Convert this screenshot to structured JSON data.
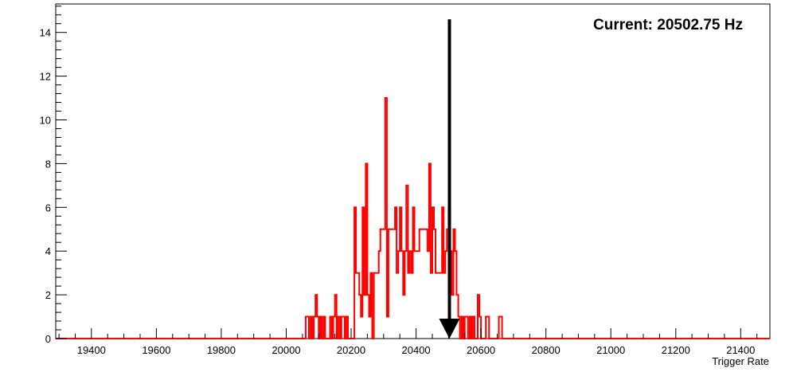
{
  "chart_data": {
    "type": "histogram",
    "title": "",
    "xlabel": "Trigger Rate",
    "ylabel": "",
    "xlim": [
      19290,
      21490
    ],
    "ylim": [
      0,
      15.3
    ],
    "x_ticks": [
      19400,
      19600,
      19800,
      20000,
      20200,
      20400,
      20600,
      20800,
      21000,
      21200,
      21400
    ],
    "y_ticks": [
      0,
      2,
      4,
      6,
      8,
      10,
      12,
      14
    ],
    "grid": false,
    "legend": "none",
    "series": [
      {
        "color": "#ff0000",
        "bin_width": 5,
        "bins": [
          [
            20060,
            1
          ],
          [
            20065,
            1
          ],
          [
            20070,
            0
          ],
          [
            20075,
            1
          ],
          [
            20080,
            0
          ],
          [
            20085,
            1
          ],
          [
            20090,
            2
          ],
          [
            20095,
            1
          ],
          [
            20100,
            0
          ],
          [
            20105,
            1
          ],
          [
            20110,
            0
          ],
          [
            20115,
            1
          ],
          [
            20120,
            0
          ],
          [
            20125,
            0
          ],
          [
            20130,
            0
          ],
          [
            20135,
            1
          ],
          [
            20140,
            0
          ],
          [
            20145,
            1
          ],
          [
            20150,
            2
          ],
          [
            20155,
            0
          ],
          [
            20160,
            1
          ],
          [
            20165,
            0
          ],
          [
            20170,
            1
          ],
          [
            20175,
            1
          ],
          [
            20180,
            0
          ],
          [
            20185,
            1
          ],
          [
            20190,
            0
          ],
          [
            20195,
            0
          ],
          [
            20200,
            0
          ],
          [
            20205,
            0
          ],
          [
            20210,
            6
          ],
          [
            20215,
            3
          ],
          [
            20220,
            3
          ],
          [
            20225,
            2
          ],
          [
            20230,
            1
          ],
          [
            20235,
            6
          ],
          [
            20240,
            2
          ],
          [
            20245,
            8
          ],
          [
            20250,
            2
          ],
          [
            20255,
            1
          ],
          [
            20260,
            3
          ],
          [
            20265,
            0
          ],
          [
            20270,
            3
          ],
          [
            20275,
            3
          ],
          [
            20280,
            3
          ],
          [
            20285,
            4
          ],
          [
            20290,
            5
          ],
          [
            20295,
            5
          ],
          [
            20300,
            5
          ],
          [
            20305,
            11
          ],
          [
            20310,
            1
          ],
          [
            20315,
            5
          ],
          [
            20320,
            5
          ],
          [
            20325,
            5
          ],
          [
            20330,
            5
          ],
          [
            20335,
            6
          ],
          [
            20340,
            3
          ],
          [
            20345,
            4
          ],
          [
            20350,
            6
          ],
          [
            20355,
            4
          ],
          [
            20360,
            2
          ],
          [
            20365,
            4
          ],
          [
            20370,
            7
          ],
          [
            20375,
            3
          ],
          [
            20380,
            4
          ],
          [
            20385,
            3
          ],
          [
            20390,
            6
          ],
          [
            20395,
            4
          ],
          [
            20400,
            4
          ],
          [
            20405,
            4
          ],
          [
            20410,
            5
          ],
          [
            20415,
            5
          ],
          [
            20420,
            5
          ],
          [
            20425,
            5
          ],
          [
            20430,
            5
          ],
          [
            20435,
            4
          ],
          [
            20440,
            8
          ],
          [
            20445,
            3
          ],
          [
            20450,
            6
          ],
          [
            20455,
            5
          ],
          [
            20460,
            3
          ],
          [
            20465,
            3
          ],
          [
            20470,
            3
          ],
          [
            20475,
            3
          ],
          [
            20480,
            6
          ],
          [
            20485,
            3
          ],
          [
            20490,
            4
          ],
          [
            20495,
            5
          ],
          [
            20500,
            6
          ],
          [
            20505,
            4
          ],
          [
            20510,
            2
          ],
          [
            20515,
            5
          ],
          [
            20520,
            4
          ],
          [
            20525,
            2
          ],
          [
            20530,
            1
          ],
          [
            20535,
            0
          ],
          [
            20540,
            1
          ],
          [
            20545,
            0
          ],
          [
            20550,
            1
          ],
          [
            20555,
            1
          ],
          [
            20560,
            0
          ],
          [
            20565,
            1
          ],
          [
            20570,
            0
          ],
          [
            20575,
            1
          ],
          [
            20580,
            0
          ],
          [
            20585,
            0
          ],
          [
            20590,
            2
          ],
          [
            20595,
            1
          ],
          [
            20600,
            0
          ],
          [
            20605,
            0
          ],
          [
            20610,
            0
          ],
          [
            20615,
            1
          ],
          [
            20620,
            1
          ],
          [
            20625,
            0
          ],
          [
            20630,
            0
          ],
          [
            20635,
            0
          ],
          [
            20640,
            0
          ],
          [
            20645,
            0
          ],
          [
            20650,
            0
          ],
          [
            20655,
            1
          ],
          [
            20660,
            1
          ]
        ]
      }
    ],
    "marker": {
      "x": 20502.75,
      "label": "Current: 20502.75 Hz",
      "color": "#000000",
      "y_top": 14.6
    }
  }
}
